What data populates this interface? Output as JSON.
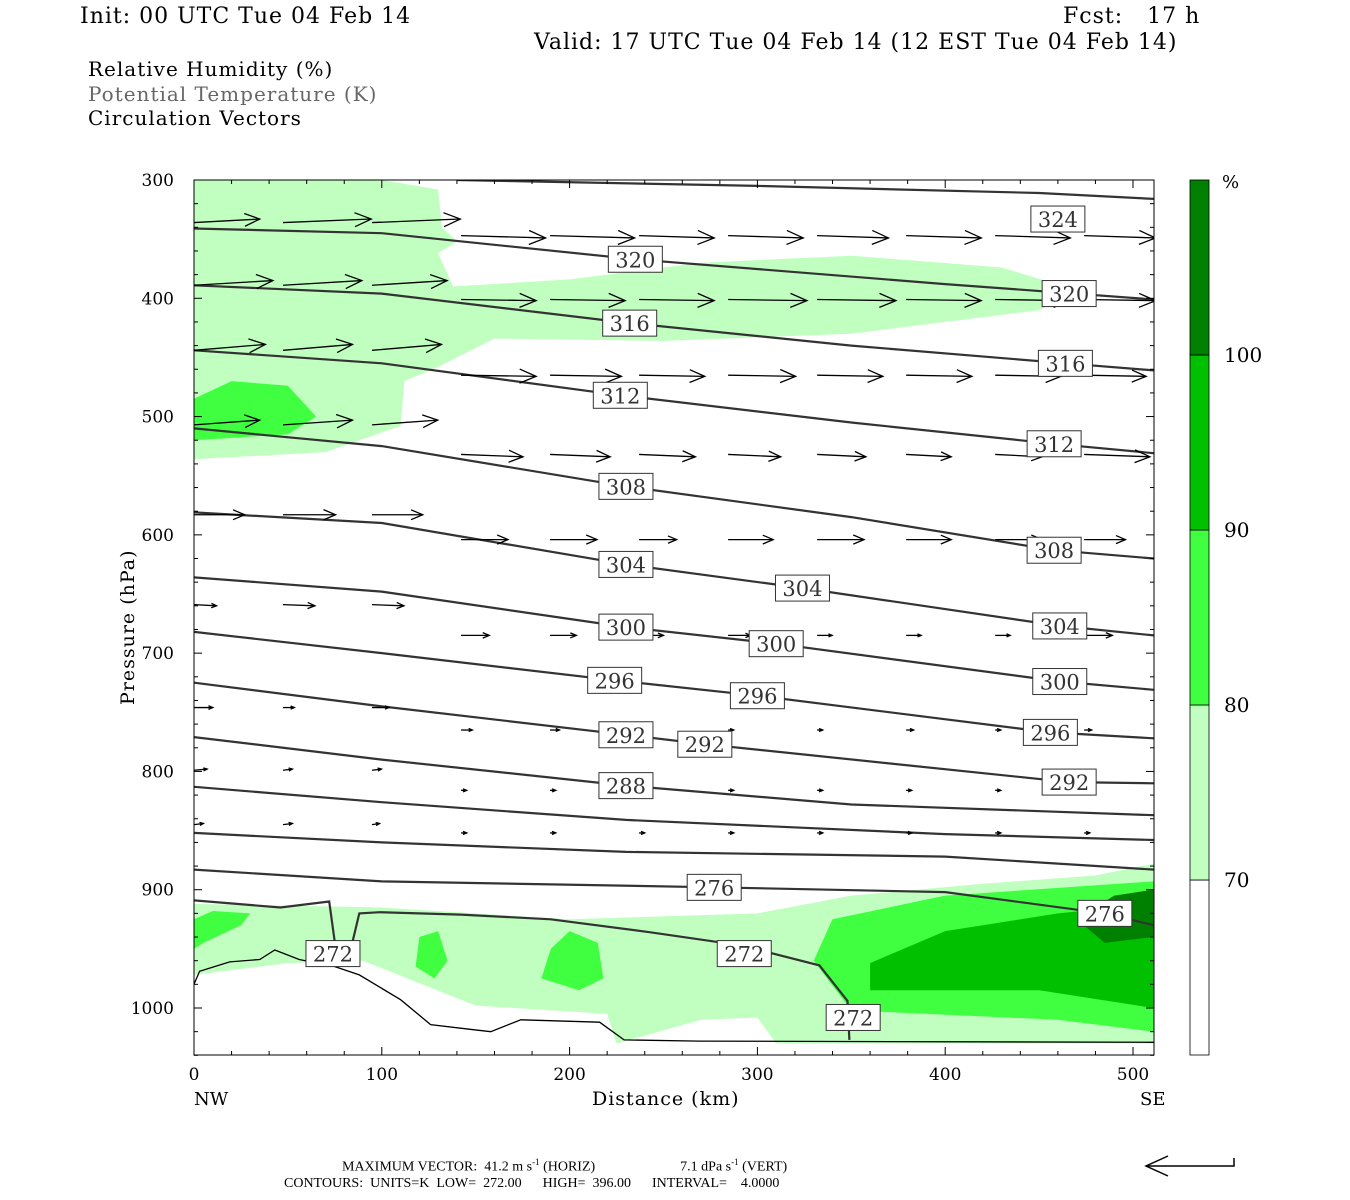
{
  "header": {
    "init": "Init: 00 UTC Tue 04 Feb 14",
    "fcst": "Fcst:   17 h",
    "valid": "Valid: 17 UTC Tue 04 Feb 14 (12 EST Tue 04 Feb 14)"
  },
  "legend": {
    "rh": "Relative Humidity (%)",
    "theta": "Potential Temperature (K)",
    "vectors": "Circulation Vectors"
  },
  "footer": {
    "max_vector": "MAXIMUM VECTOR:  41.2 m s",
    "horiz_unit_exp": "-1",
    "horiz": " (HORIZ)",
    "vert_value": "7.1 dPa s",
    "vert_unit_exp": "-1",
    "vert": " (VERT)",
    "contours": "CONTOURS:  UNITS=K  LOW=  272.00      HIGH=  396.00      INTERVAL=    4.0000"
  },
  "chart_data": {
    "type": "cross-section",
    "xlabel": "Distance (km)",
    "ylabel": "Pressure (hPa)",
    "xlim": [
      0,
      511
    ],
    "ylim": [
      300,
      1040
    ],
    "x_ticks": [
      0,
      100,
      200,
      300,
      400,
      500
    ],
    "y_ticks": [
      300,
      400,
      500,
      600,
      700,
      800,
      900,
      1000
    ],
    "x_end_labels": {
      "left": "NW",
      "right": "SE"
    },
    "colorbar": {
      "unit": "%",
      "levels": [
        70,
        80,
        90,
        100
      ],
      "colors": [
        "#ffffff",
        "#c0ffc0",
        "#40ff40",
        "#00c000",
        "#008000"
      ]
    },
    "rh_regions": [
      {
        "level": 70,
        "points": [
          [
            0,
            300
          ],
          [
            100,
            300
          ],
          [
            130,
            308
          ],
          [
            132,
            340
          ],
          [
            140,
            352
          ],
          [
            130,
            362
          ],
          [
            138,
            390
          ],
          [
            200,
            384
          ],
          [
            270,
            370
          ],
          [
            350,
            364
          ],
          [
            430,
            374
          ],
          [
            472,
            394
          ],
          [
            450,
            410
          ],
          [
            350,
            430
          ],
          [
            250,
            436
          ],
          [
            160,
            434
          ],
          [
            130,
            458
          ],
          [
            112,
            470
          ],
          [
            110,
            508
          ],
          [
            70,
            530
          ],
          [
            0,
            536
          ]
        ]
      },
      {
        "level": 70,
        "points": [
          [
            0,
            912
          ],
          [
            100,
            915
          ],
          [
            200,
            925
          ],
          [
            300,
            920
          ],
          [
            350,
            905
          ],
          [
            420,
            895
          ],
          [
            480,
            888
          ],
          [
            511,
            878
          ],
          [
            511,
            1030
          ],
          [
            310,
            1030
          ],
          [
            300,
            1008
          ],
          [
            270,
            1010
          ],
          [
            225,
            1030
          ],
          [
            220,
            1005
          ],
          [
            150,
            998
          ],
          [
            90,
            960
          ],
          [
            50,
            962
          ],
          [
            0,
            972
          ]
        ]
      },
      {
        "level": 80,
        "points": [
          [
            0,
            485
          ],
          [
            20,
            470
          ],
          [
            50,
            474
          ],
          [
            65,
            500
          ],
          [
            50,
            515
          ],
          [
            0,
            520
          ]
        ]
      },
      {
        "level": 80,
        "points": [
          [
            0,
            925
          ],
          [
            10,
            918
          ],
          [
            30,
            920
          ],
          [
            25,
            930
          ],
          [
            5,
            945
          ],
          [
            0,
            950
          ]
        ]
      },
      {
        "level": 80,
        "points": [
          [
            190,
            950
          ],
          [
            200,
            935
          ],
          [
            215,
            945
          ],
          [
            218,
            975
          ],
          [
            205,
            985
          ],
          [
            185,
            975
          ]
        ]
      },
      {
        "level": 80,
        "points": [
          [
            340,
            925
          ],
          [
            400,
            905
          ],
          [
            511,
            893
          ],
          [
            511,
            1020
          ],
          [
            460,
            1010
          ],
          [
            350,
            1002
          ],
          [
            330,
            960
          ]
        ]
      },
      {
        "level": 80,
        "points": [
          [
            120,
            940
          ],
          [
            130,
            935
          ],
          [
            135,
            960
          ],
          [
            128,
            975
          ],
          [
            118,
            965
          ]
        ]
      },
      {
        "level": 90,
        "points": [
          [
            360,
            962
          ],
          [
            400,
            935
          ],
          [
            460,
            920
          ],
          [
            511,
            912
          ],
          [
            511,
            1000
          ],
          [
            450,
            985
          ],
          [
            360,
            985
          ]
        ]
      },
      {
        "level": 100,
        "points": [
          [
            470,
            925
          ],
          [
            490,
            905
          ],
          [
            511,
            900
          ],
          [
            511,
            940
          ],
          [
            485,
            945
          ]
        ]
      }
    ],
    "isentropes": [
      {
        "theta": 324,
        "points": [
          [
            140,
            300
          ],
          [
            300,
            305
          ],
          [
            450,
            311
          ],
          [
            511,
            316
          ]
        ],
        "labels": [
          [
            460,
            333
          ]
        ]
      },
      {
        "theta": 320,
        "points": [
          [
            0,
            341
          ],
          [
            100,
            345
          ],
          [
            235,
            367
          ],
          [
            400,
            388
          ],
          [
            511,
            401
          ]
        ],
        "labels": [
          [
            235,
            367
          ],
          [
            466,
            396
          ]
        ]
      },
      {
        "theta": 316,
        "points": [
          [
            0,
            389
          ],
          [
            100,
            396
          ],
          [
            232,
            421
          ],
          [
            350,
            440
          ],
          [
            464,
            455
          ],
          [
            511,
            461
          ]
        ],
        "labels": [
          [
            232,
            421
          ],
          [
            464,
            455
          ]
        ]
      },
      {
        "theta": 312,
        "points": [
          [
            0,
            444
          ],
          [
            100,
            455
          ],
          [
            227,
            482
          ],
          [
            350,
            505
          ],
          [
            458,
            523
          ],
          [
            511,
            531
          ]
        ],
        "labels": [
          [
            227,
            482
          ],
          [
            458,
            523
          ]
        ]
      },
      {
        "theta": 308,
        "points": [
          [
            0,
            510
          ],
          [
            100,
            525
          ],
          [
            230,
            559
          ],
          [
            350,
            585
          ],
          [
            458,
            613
          ],
          [
            511,
            620
          ]
        ],
        "labels": [
          [
            230,
            559
          ],
          [
            458,
            613
          ]
        ]
      },
      {
        "theta": 304,
        "points": [
          [
            0,
            581
          ],
          [
            100,
            590
          ],
          [
            230,
            625
          ],
          [
            324,
            645
          ],
          [
            461,
            677
          ],
          [
            511,
            685
          ]
        ],
        "labels": [
          [
            230,
            625
          ],
          [
            324,
            645
          ],
          [
            461,
            677
          ]
        ]
      },
      {
        "theta": 300,
        "points": [
          [
            0,
            636
          ],
          [
            100,
            648
          ],
          [
            230,
            678
          ],
          [
            310,
            692
          ],
          [
            461,
            724
          ],
          [
            511,
            731
          ]
        ],
        "labels": [
          [
            230,
            678
          ],
          [
            310,
            692
          ],
          [
            461,
            724
          ]
        ]
      },
      {
        "theta": 296,
        "points": [
          [
            0,
            682
          ],
          [
            100,
            700
          ],
          [
            224,
            723
          ],
          [
            300,
            736
          ],
          [
            456,
            767
          ],
          [
            511,
            772
          ]
        ],
        "labels": [
          [
            224,
            723
          ],
          [
            300,
            736
          ],
          [
            456,
            767
          ]
        ]
      },
      {
        "theta": 292,
        "points": [
          [
            0,
            725
          ],
          [
            100,
            745
          ],
          [
            230,
            769
          ],
          [
            272,
            777
          ],
          [
            466,
            809
          ],
          [
            511,
            810
          ]
        ],
        "labels": [
          [
            230,
            769
          ],
          [
            272,
            777
          ],
          [
            466,
            809
          ]
        ]
      },
      {
        "theta": 288,
        "points": [
          [
            0,
            771
          ],
          [
            100,
            790
          ],
          [
            230,
            812
          ],
          [
            350,
            828
          ],
          [
            511,
            837
          ]
        ],
        "labels": [
          [
            230,
            812
          ]
        ]
      },
      {
        "theta": 284,
        "points": [
          [
            0,
            813
          ],
          [
            100,
            826
          ],
          [
            230,
            841
          ],
          [
            400,
            853
          ],
          [
            511,
            858
          ]
        ],
        "labels": []
      },
      {
        "theta": 280,
        "points": [
          [
            0,
            852
          ],
          [
            100,
            860
          ],
          [
            230,
            868
          ],
          [
            400,
            872
          ],
          [
            511,
            883
          ]
        ],
        "labels": []
      },
      {
        "theta": 276,
        "points": [
          [
            0,
            883
          ],
          [
            100,
            893
          ],
          [
            277,
            898
          ],
          [
            400,
            902
          ],
          [
            485,
            920
          ],
          [
            511,
            930
          ]
        ],
        "labels": [
          [
            277,
            898
          ],
          [
            485,
            920
          ]
        ]
      },
      {
        "theta": 272,
        "points": [
          [
            0,
            909
          ],
          [
            46,
            915
          ],
          [
            72,
            910
          ],
          [
            76,
            956
          ]
        ],
        "labels": [
          [
            74,
            954
          ]
        ]
      },
      {
        "theta": 272,
        "points": [
          [
            82,
            960
          ],
          [
            88,
            920
          ],
          [
            99,
            919
          ],
          [
            142,
            921
          ],
          [
            190,
            925
          ],
          [
            243,
            936
          ],
          [
            291,
            947
          ],
          [
            333,
            964
          ],
          [
            348,
            994
          ],
          [
            349,
            1027
          ]
        ],
        "labels": [
          [
            293,
            954
          ],
          [
            351,
            1008
          ]
        ]
      }
    ],
    "terrain": [
      [
        0,
        980
      ],
      [
        3,
        969
      ],
      [
        19,
        961
      ],
      [
        35,
        959
      ],
      [
        43,
        951
      ],
      [
        56,
        959
      ],
      [
        75,
        965
      ],
      [
        88,
        972
      ],
      [
        110,
        993
      ],
      [
        126,
        1014
      ],
      [
        147,
        1018
      ],
      [
        158,
        1020
      ],
      [
        174,
        1010
      ],
      [
        216,
        1012
      ],
      [
        229,
        1027
      ],
      [
        269,
        1028
      ],
      [
        511,
        1029
      ]
    ],
    "vectors": {
      "column_spacing_km": 47.4,
      "rows": [
        {
          "p": 336,
          "first_col": 0,
          "lengths_km": [
            35,
            47,
            47
          ],
          "dp": -3
        },
        {
          "p": 389,
          "first_col": 0,
          "lengths_km": [
            42,
            42,
            40
          ],
          "dp": -4
        },
        {
          "p": 444,
          "first_col": 0,
          "lengths_km": [
            38,
            37,
            37
          ],
          "dp": -5
        },
        {
          "p": 507,
          "first_col": 0,
          "lengths_km": [
            35,
            37,
            35
          ],
          "dp": -4
        },
        {
          "p": 583,
          "first_col": 0,
          "lengths_km": [
            27,
            28,
            27
          ],
          "dp": 0
        },
        {
          "p": 659,
          "first_col": 0,
          "lengths_km": [
            12,
            17,
            17
          ],
          "dp": 1
        },
        {
          "p": 746,
          "first_col": 0,
          "lengths_km": [
            10,
            6,
            9
          ],
          "dp": 0
        },
        {
          "p": 799,
          "first_col": 0,
          "lengths_km": [
            7,
            5,
            5
          ],
          "dp": -1
        },
        {
          "p": 845,
          "first_col": 0,
          "lengths_km": [
            5,
            5,
            4
          ],
          "dp": -1
        },
        {
          "p": 347,
          "first_col": 3,
          "lengths_km": [
            45,
            45,
            40,
            40,
            38,
            40,
            40,
            38
          ],
          "dp": 2
        },
        {
          "p": 401,
          "first_col": 3,
          "lengths_km": [
            40,
            40,
            40,
            42,
            42,
            40,
            40,
            38
          ],
          "dp": 1
        },
        {
          "p": 465,
          "first_col": 3,
          "lengths_km": [
            40,
            38,
            35,
            36,
            35,
            35,
            35,
            33
          ],
          "dp": 1
        },
        {
          "p": 532,
          "first_col": 3,
          "lengths_km": [
            33,
            32,
            30,
            28,
            26,
            24,
            25,
            35
          ],
          "dp": 2
        },
        {
          "p": 604,
          "first_col": 3,
          "lengths_km": [
            25,
            25,
            20,
            24,
            25,
            24,
            25,
            22
          ],
          "dp": 0
        },
        {
          "p": 685,
          "first_col": 3,
          "lengths_km": [
            15,
            14,
            13,
            12,
            8,
            8,
            8,
            15
          ],
          "dp": 0
        },
        {
          "p": 765,
          "first_col": 3,
          "lengths_km": [
            6,
            5,
            4,
            3,
            3,
            4,
            3,
            4
          ],
          "dp": 0
        },
        {
          "p": 816,
          "first_col": 3,
          "lengths_km": [
            3,
            3,
            4,
            3,
            3,
            3,
            3,
            3
          ],
          "dp": 0
        },
        {
          "p": 852,
          "first_col": 3,
          "lengths_km": [
            3,
            3,
            3,
            3,
            3,
            3,
            3,
            3
          ],
          "dp": 0
        }
      ]
    }
  }
}
